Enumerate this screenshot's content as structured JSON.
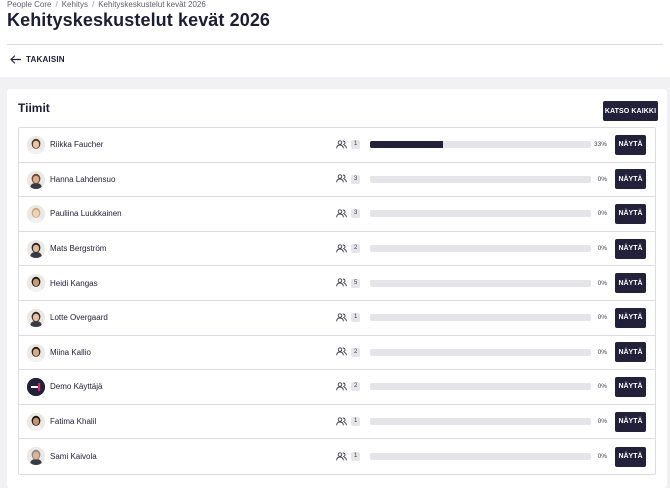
{
  "breadcrumb": [
    "People Core",
    "Kehitys",
    "Kehityskeskustelut kevät 2026"
  ],
  "page_title": "Kehityskeskustelut kevät 2026",
  "back_label": "TAKAISIN",
  "section": {
    "title": "Tiimit",
    "view_all_label": "KATSO KAIKKI",
    "show_label": "NÄYTÄ"
  },
  "colors": {
    "primary": "#23203a",
    "background": "#f1f1f4",
    "bar_track": "#e4e4e9"
  },
  "icons": {
    "back": "arrow-left-icon",
    "team": "people-icon"
  },
  "teams": [
    {
      "name": "Riikka Faucher",
      "members": "1",
      "progress": 33,
      "progress_label": "33%",
      "avatar": "photo"
    },
    {
      "name": "Hanna Lahdensuo",
      "members": "3",
      "progress": 0,
      "progress_label": "0%",
      "avatar": "photo"
    },
    {
      "name": "Pauliina Luukkainen",
      "members": "3",
      "progress": 0,
      "progress_label": "0%",
      "avatar": "photo"
    },
    {
      "name": "Mats Bergström",
      "members": "2",
      "progress": 0,
      "progress_label": "0%",
      "avatar": "photo"
    },
    {
      "name": "Heidi Kangas",
      "members": "5",
      "progress": 0,
      "progress_label": "0%",
      "avatar": "photo"
    },
    {
      "name": "Lotte Overgaard",
      "members": "1",
      "progress": 0,
      "progress_label": "0%",
      "avatar": "photo"
    },
    {
      "name": "Miina Kallio",
      "members": "2",
      "progress": 0,
      "progress_label": "0%",
      "avatar": "photo"
    },
    {
      "name": "Demo Käyttäjä",
      "members": "2",
      "progress": 0,
      "progress_label": "0%",
      "avatar": "logo"
    },
    {
      "name": "Fatima Khalil",
      "members": "1",
      "progress": 0,
      "progress_label": "0%",
      "avatar": "photo"
    },
    {
      "name": "Sami Kaivola",
      "members": "1",
      "progress": 0,
      "progress_label": "0%",
      "avatar": "photo"
    }
  ]
}
